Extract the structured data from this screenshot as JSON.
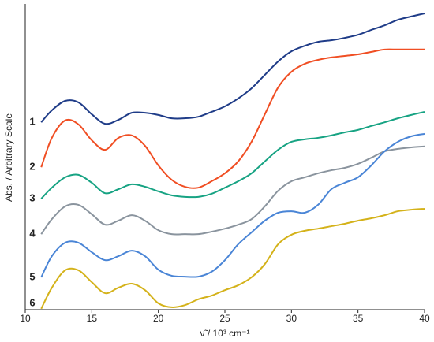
{
  "chart_data": {
    "type": "line",
    "xlabel": "ν̃ / 10³ cm⁻¹",
    "ylabel": "Abs. / Arbitrary Scale",
    "x": [
      11.2,
      12,
      13,
      14,
      15,
      16,
      17,
      18,
      19,
      20,
      21,
      22,
      23,
      24,
      25,
      26,
      27,
      28,
      29,
      30,
      31,
      32,
      33,
      34,
      35,
      36,
      37,
      38,
      39,
      40
    ],
    "xlim": [
      10,
      40
    ],
    "xticks": [
      10,
      15,
      20,
      25,
      30,
      35,
      40
    ],
    "ylim": [
      0,
      100
    ],
    "series": [
      {
        "name": "1",
        "color": "#1f3c88",
        "values": [
          61.3,
          65.2,
          68.3,
          67.8,
          63.9,
          60.8,
          62.1,
          64.4,
          64.4,
          63.7,
          62.6,
          62.6,
          63.1,
          64.7,
          66.5,
          69.1,
          72.4,
          76.8,
          81.2,
          84.5,
          86.3,
          87.6,
          88.1,
          88.9,
          89.9,
          91.5,
          93.0,
          94.8,
          95.9,
          96.9
        ]
      },
      {
        "name": "2",
        "color": "#f04e23",
        "values": [
          46.6,
          56.2,
          61.9,
          60.6,
          55.4,
          52.3,
          56.2,
          57.0,
          53.6,
          47.2,
          42.5,
          40.2,
          39.9,
          42.0,
          44.6,
          48.5,
          54.9,
          63.9,
          72.7,
          77.8,
          80.4,
          81.7,
          82.5,
          83.0,
          83.5,
          84.3,
          85.1,
          85.1,
          85.1,
          85.1
        ]
      },
      {
        "name": "3",
        "color": "#17a383",
        "values": [
          36.3,
          39.9,
          43.3,
          44.1,
          41.5,
          38.1,
          39.4,
          41.0,
          40.2,
          38.7,
          37.4,
          36.9,
          36.9,
          37.9,
          39.9,
          42.0,
          44.6,
          48.5,
          52.3,
          54.9,
          55.7,
          56.2,
          57.0,
          58.0,
          58.8,
          60.1,
          61.3,
          62.6,
          63.7,
          64.7
        ]
      },
      {
        "name": "4",
        "color": "#8a949e",
        "values": [
          24.7,
          29.6,
          33.8,
          34.3,
          31.2,
          27.8,
          29.1,
          30.9,
          29.1,
          26.0,
          24.7,
          24.7,
          24.7,
          25.5,
          26.5,
          27.8,
          29.6,
          33.8,
          38.9,
          42.0,
          43.3,
          44.6,
          45.6,
          46.4,
          47.7,
          49.7,
          51.8,
          52.6,
          53.1,
          53.4
        ]
      },
      {
        "name": "5",
        "color": "#4a85d6",
        "values": [
          10.6,
          17.5,
          21.9,
          21.9,
          18.8,
          16.2,
          17.5,
          19.3,
          17.5,
          13.1,
          11.1,
          10.8,
          10.8,
          12.4,
          16.2,
          21.4,
          25.3,
          29.1,
          31.7,
          32.2,
          31.7,
          34.3,
          39.4,
          41.5,
          43.3,
          47.2,
          51.8,
          54.9,
          56.7,
          57.5
        ]
      },
      {
        "name": "6",
        "color": "#d4b21a",
        "values": [
          0.3,
          7.2,
          12.9,
          12.9,
          9.0,
          5.4,
          7.2,
          8.5,
          6.4,
          2.1,
          0.8,
          1.5,
          3.4,
          4.6,
          6.4,
          8.0,
          10.6,
          14.9,
          21.4,
          24.5,
          25.8,
          26.5,
          27.3,
          28.1,
          29.1,
          29.9,
          30.9,
          32.2,
          32.7,
          33.0
        ]
      }
    ]
  }
}
